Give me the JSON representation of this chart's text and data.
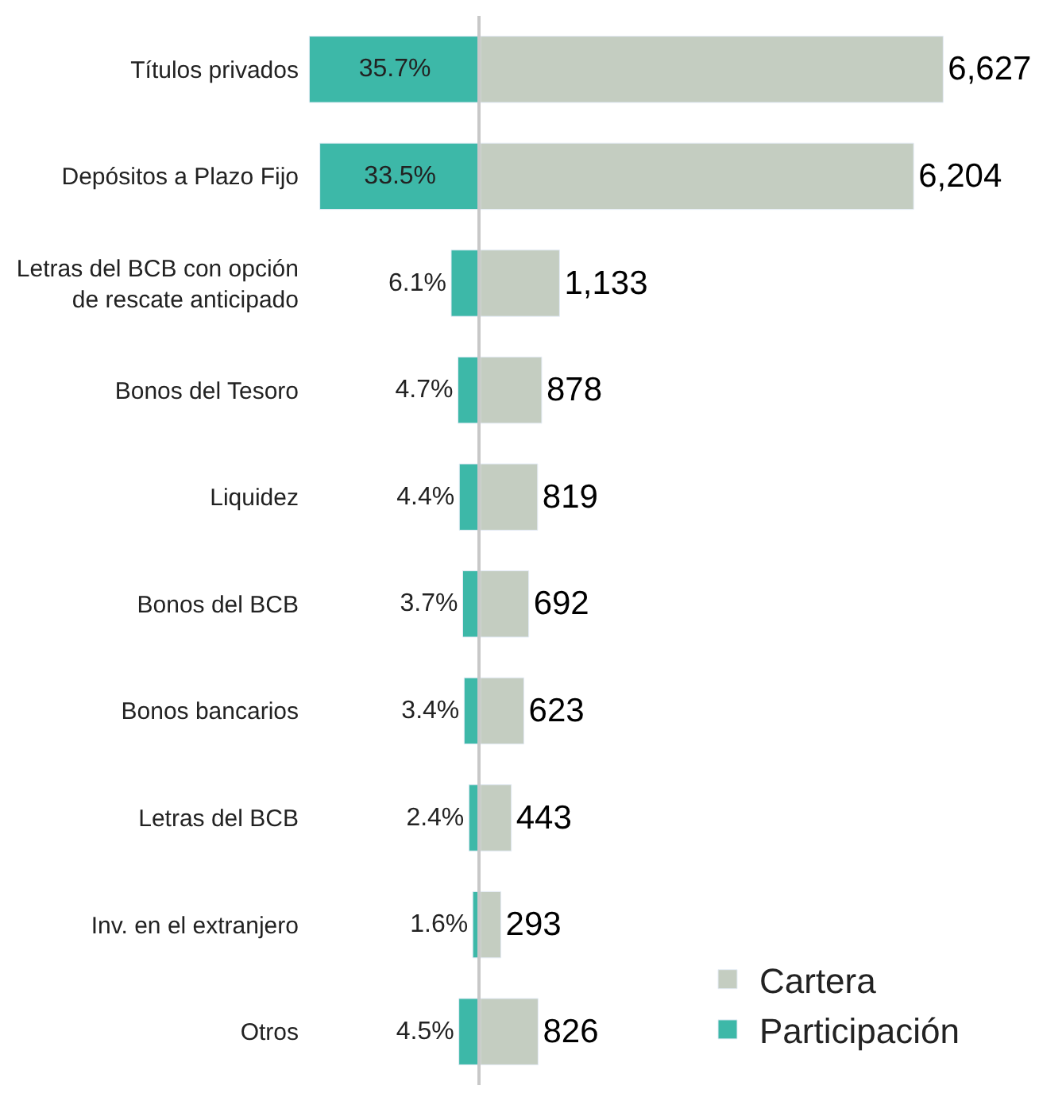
{
  "chart_data": [
    {
      "type": "bar",
      "orientation": "horizontal",
      "legend": "bottom right",
      "categories": [
        "Títulos privados",
        "Depósitos a Plazo Fijo",
        "Letras del BCB con opción\nde rescate anticipado",
        "Bonos del Tesoro",
        "Liquidez",
        "Bonos del BCB",
        "Bonos bancarios",
        "Letras del BCB",
        "Inv. en el extranjero",
        "Otros"
      ],
      "series": [
        {
          "name": "Participación",
          "color": "#3db8a8",
          "values": [
            35.7,
            33.5,
            6.1,
            4.7,
            4.4,
            3.7,
            3.4,
            2.4,
            1.6,
            4.5
          ],
          "value_labels": [
            "35.7%",
            "33.5%",
            "6.1%",
            "4.7%",
            "4.4%",
            "3.7%",
            "3.4%",
            "2.4%",
            "1.6%",
            "4.5%"
          ]
        }
      ]
    },
    {
      "type": "bar",
      "orientation": "horizontal",
      "legend": "bottom right",
      "categories": [
        null,
        null,
        null,
        null,
        null,
        null,
        null,
        null,
        null,
        null
      ],
      "series": [
        {
          "name": "Cartera",
          "color": "#c4cdc1",
          "values": [
            6627,
            6204,
            1133,
            878,
            819,
            692,
            623,
            443,
            293,
            826
          ],
          "value_labels": [
            "6,627",
            "6,204",
            "1,133",
            "878",
            "819",
            "692",
            "623",
            "443",
            "293",
            "826"
          ]
        }
      ]
    }
  ]
}
